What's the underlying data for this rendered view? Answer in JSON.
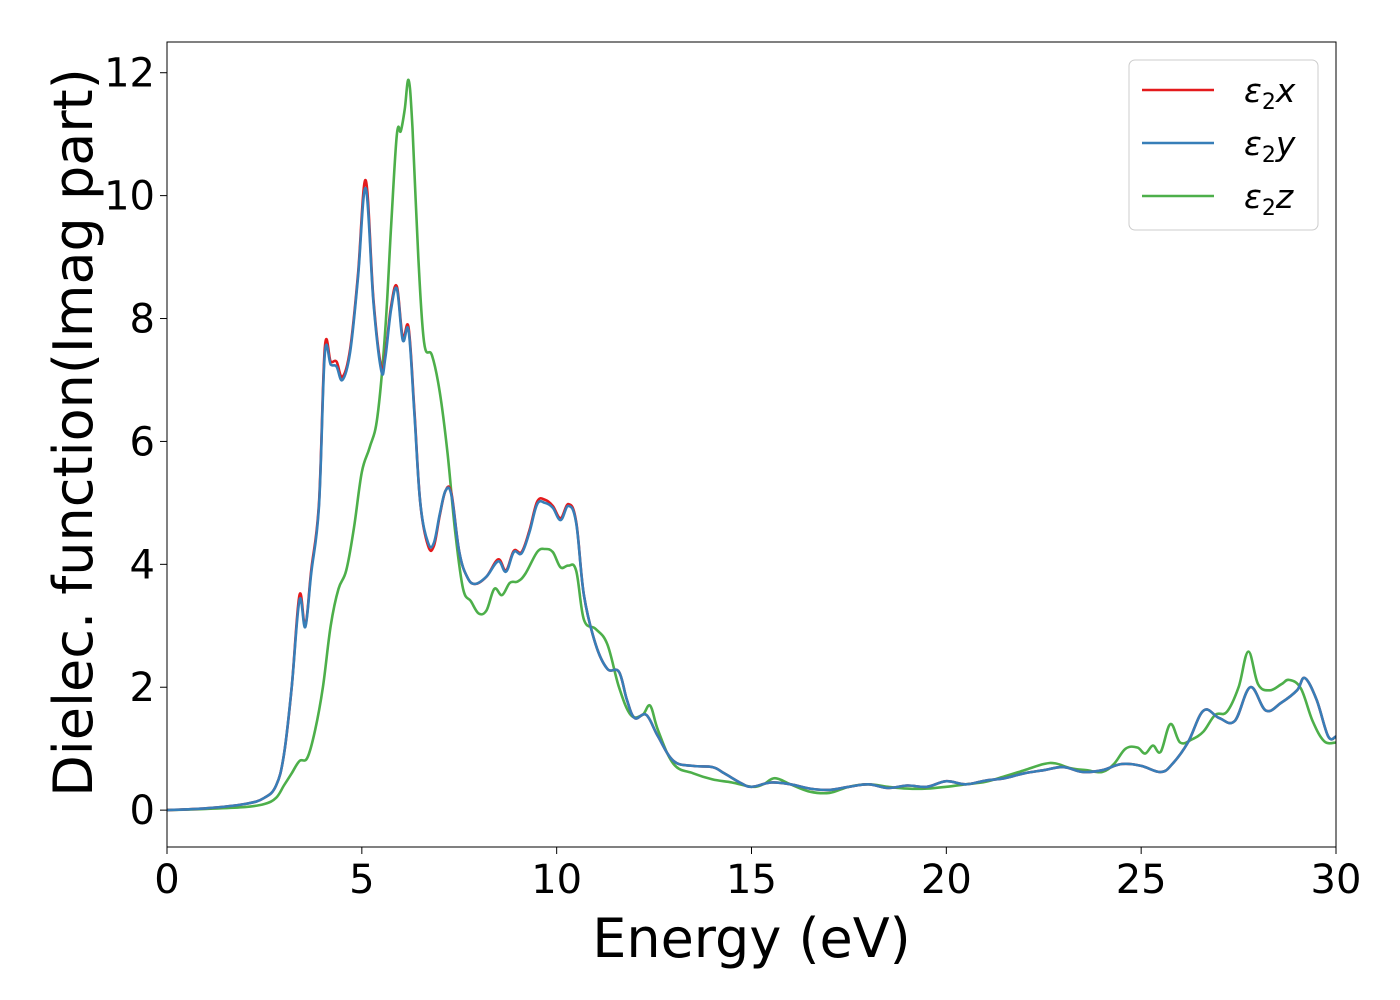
{
  "chart_data": {
    "type": "line",
    "title": "",
    "xlabel": "Energy (eV)",
    "ylabel": "Dielec. function(Imag part)",
    "xlim": [
      0,
      30
    ],
    "ylim": [
      -0.6,
      12.5
    ],
    "xticks": [
      0,
      5,
      10,
      15,
      20,
      25,
      30
    ],
    "yticks": [
      0,
      2,
      4,
      6,
      8,
      10,
      12
    ],
    "xtick_labels": [
      "0",
      "5",
      "10",
      "15",
      "20",
      "25",
      "30"
    ],
    "ytick_labels": [
      "0",
      "2",
      "4",
      "6",
      "8",
      "10",
      "12"
    ],
    "grid": false,
    "legend_position": "top-right",
    "series": [
      {
        "name": "ε₂x",
        "legend_base": "ε",
        "legend_sub": "2",
        "legend_suffix": "x",
        "color": "#e41a1c",
        "x": [
          0,
          1,
          2,
          2.5,
          2.8,
          3.0,
          3.2,
          3.4,
          3.55,
          3.7,
          3.9,
          4.05,
          4.2,
          4.35,
          4.5,
          4.7,
          4.9,
          5.1,
          5.3,
          5.5,
          5.6,
          5.75,
          5.9,
          6.05,
          6.2,
          6.35,
          6.5,
          6.7,
          6.85,
          7.0,
          7.15,
          7.3,
          7.5,
          7.7,
          7.9,
          8.2,
          8.5,
          8.7,
          8.9,
          9.1,
          9.3,
          9.5,
          9.7,
          9.9,
          10.1,
          10.3,
          10.5,
          10.7,
          11.0,
          11.3,
          11.6,
          11.8,
          12.0,
          12.3,
          12.6,
          13.0,
          13.5,
          14.0,
          14.3,
          14.7,
          15.0,
          15.5,
          16.0,
          16.5,
          17.0,
          17.5,
          18.0,
          18.5,
          19.0,
          19.5,
          20.0,
          20.5,
          21.0,
          21.5,
          22.0,
          22.5,
          23.0,
          23.5,
          24.0,
          24.5,
          25.0,
          25.5,
          25.8,
          26.2,
          26.6,
          27.0,
          27.4,
          27.8,
          28.2,
          28.6,
          29.0,
          29.2,
          29.5,
          29.8,
          30.0
        ],
        "values": [
          0,
          0.03,
          0.1,
          0.2,
          0.4,
          0.9,
          2.0,
          3.5,
          3.0,
          3.9,
          5.0,
          7.52,
          7.3,
          7.3,
          7.05,
          7.5,
          8.7,
          10.25,
          8.3,
          7.2,
          7.4,
          8.2,
          8.52,
          7.7,
          7.85,
          6.5,
          5.0,
          4.3,
          4.3,
          4.8,
          5.2,
          5.15,
          4.2,
          3.8,
          3.68,
          3.8,
          4.08,
          3.9,
          4.22,
          4.2,
          4.55,
          5.02,
          5.05,
          4.95,
          4.75,
          4.98,
          4.7,
          3.5,
          2.7,
          2.3,
          2.25,
          1.8,
          1.5,
          1.55,
          1.2,
          0.8,
          0.72,
          0.7,
          0.6,
          0.45,
          0.38,
          0.45,
          0.42,
          0.35,
          0.33,
          0.38,
          0.42,
          0.36,
          0.4,
          0.38,
          0.47,
          0.42,
          0.48,
          0.52,
          0.6,
          0.65,
          0.7,
          0.62,
          0.65,
          0.75,
          0.72,
          0.62,
          0.75,
          1.1,
          1.62,
          1.5,
          1.45,
          2.0,
          1.62,
          1.75,
          1.95,
          2.15,
          1.8,
          1.2,
          1.2
        ]
      },
      {
        "name": "ε₂y",
        "legend_base": "ε",
        "legend_sub": "2",
        "legend_suffix": "y",
        "color": "#377eb8",
        "x": [
          0,
          1,
          2,
          2.5,
          2.8,
          3.0,
          3.2,
          3.4,
          3.55,
          3.7,
          3.9,
          4.05,
          4.2,
          4.35,
          4.5,
          4.7,
          4.9,
          5.1,
          5.3,
          5.5,
          5.6,
          5.75,
          5.9,
          6.05,
          6.2,
          6.35,
          6.5,
          6.7,
          6.85,
          7.0,
          7.15,
          7.3,
          7.5,
          7.7,
          7.9,
          8.2,
          8.5,
          8.7,
          8.9,
          9.1,
          9.3,
          9.5,
          9.7,
          9.9,
          10.1,
          10.3,
          10.5,
          10.7,
          11.0,
          11.3,
          11.6,
          11.8,
          12.0,
          12.3,
          12.6,
          13.0,
          13.5,
          14.0,
          14.3,
          14.7,
          15.0,
          15.5,
          16.0,
          16.5,
          17.0,
          17.5,
          18.0,
          18.5,
          19.0,
          19.5,
          20.0,
          20.5,
          21.0,
          21.5,
          22.0,
          22.5,
          23.0,
          23.5,
          24.0,
          24.5,
          25.0,
          25.5,
          25.8,
          26.2,
          26.6,
          27.0,
          27.4,
          27.8,
          28.2,
          28.6,
          29.0,
          29.2,
          29.5,
          29.8,
          30.0
        ],
        "values": [
          0,
          0.03,
          0.1,
          0.2,
          0.4,
          0.9,
          2.0,
          3.42,
          2.98,
          3.85,
          4.95,
          7.42,
          7.25,
          7.22,
          7.0,
          7.45,
          8.65,
          10.12,
          8.25,
          7.15,
          7.35,
          8.15,
          8.48,
          7.65,
          7.8,
          6.45,
          5.0,
          4.35,
          4.35,
          4.82,
          5.2,
          5.12,
          4.2,
          3.8,
          3.68,
          3.8,
          4.05,
          3.88,
          4.2,
          4.18,
          4.52,
          4.98,
          5.0,
          4.92,
          4.72,
          4.95,
          4.68,
          3.5,
          2.7,
          2.3,
          2.25,
          1.8,
          1.5,
          1.55,
          1.2,
          0.8,
          0.72,
          0.7,
          0.6,
          0.45,
          0.38,
          0.45,
          0.42,
          0.35,
          0.33,
          0.38,
          0.42,
          0.36,
          0.4,
          0.38,
          0.47,
          0.42,
          0.48,
          0.52,
          0.6,
          0.65,
          0.7,
          0.62,
          0.65,
          0.75,
          0.72,
          0.62,
          0.75,
          1.1,
          1.62,
          1.5,
          1.45,
          2.0,
          1.62,
          1.75,
          1.95,
          2.15,
          1.8,
          1.2,
          1.2
        ]
      },
      {
        "name": "ε₂z",
        "legend_base": "ε",
        "legend_sub": "2",
        "legend_suffix": "z",
        "color": "#4daf4a",
        "x": [
          0,
          1,
          2,
          2.5,
          2.8,
          3.0,
          3.2,
          3.4,
          3.6,
          3.8,
          4.0,
          4.2,
          4.4,
          4.6,
          4.8,
          5.0,
          5.2,
          5.4,
          5.6,
          5.75,
          5.9,
          6.0,
          6.1,
          6.2,
          6.3,
          6.45,
          6.6,
          6.8,
          7.0,
          7.2,
          7.4,
          7.6,
          7.8,
          8.0,
          8.2,
          8.4,
          8.6,
          8.8,
          9.0,
          9.2,
          9.5,
          9.7,
          9.9,
          10.1,
          10.3,
          10.5,
          10.7,
          11.0,
          11.3,
          11.6,
          11.9,
          12.2,
          12.4,
          12.6,
          13.0,
          13.5,
          14.0,
          14.5,
          15.0,
          15.3,
          15.6,
          16.0,
          16.5,
          17.0,
          17.5,
          18.0,
          18.5,
          19.0,
          19.5,
          20.0,
          20.5,
          21.0,
          21.5,
          22.0,
          22.5,
          22.8,
          23.2,
          23.6,
          24.0,
          24.3,
          24.6,
          24.9,
          25.1,
          25.3,
          25.5,
          25.75,
          26.0,
          26.3,
          26.6,
          26.9,
          27.2,
          27.5,
          27.75,
          28.0,
          28.3,
          28.6,
          28.8,
          29.1,
          29.4,
          29.7,
          30.0
        ],
        "values": [
          0,
          0.02,
          0.05,
          0.1,
          0.2,
          0.4,
          0.6,
          0.8,
          0.85,
          1.3,
          2.0,
          3.0,
          3.6,
          3.9,
          4.6,
          5.5,
          5.9,
          6.4,
          7.8,
          9.5,
          11.0,
          11.05,
          11.4,
          11.88,
          11.1,
          9.0,
          7.6,
          7.4,
          6.8,
          5.8,
          4.5,
          3.6,
          3.4,
          3.2,
          3.25,
          3.6,
          3.5,
          3.7,
          3.72,
          3.85,
          4.2,
          4.25,
          4.2,
          3.95,
          3.98,
          3.9,
          3.1,
          2.95,
          2.7,
          2.0,
          1.55,
          1.55,
          1.7,
          1.3,
          0.75,
          0.6,
          0.5,
          0.45,
          0.38,
          0.42,
          0.52,
          0.42,
          0.3,
          0.28,
          0.38,
          0.42,
          0.38,
          0.35,
          0.35,
          0.38,
          0.42,
          0.46,
          0.55,
          0.65,
          0.75,
          0.76,
          0.68,
          0.65,
          0.62,
          0.75,
          1.0,
          1.02,
          0.92,
          1.05,
          0.95,
          1.4,
          1.1,
          1.15,
          1.28,
          1.55,
          1.6,
          2.0,
          2.58,
          2.05,
          1.95,
          2.05,
          2.12,
          1.98,
          1.45,
          1.12,
          1.1
        ]
      }
    ]
  }
}
